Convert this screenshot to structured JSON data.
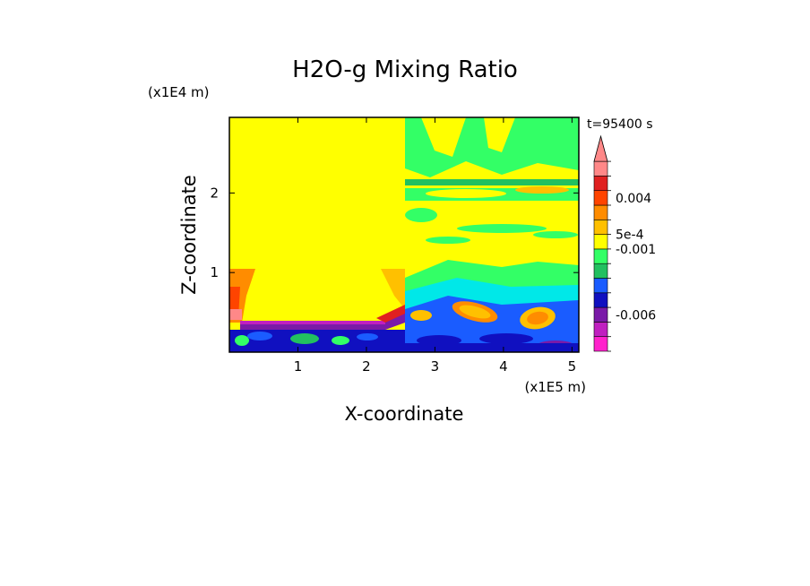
{
  "chart_data": {
    "type": "heatmap",
    "title": "H2O-g Mixing Ratio",
    "xlabel": "X-coordinate",
    "ylabel": "Z-coordinate",
    "x_unit": "(x1E5 m)",
    "y_unit": "(x1E4 m)",
    "time_label": "t=95400 s",
    "xlim": [
      0,
      5.1
    ],
    "ylim": [
      0,
      2.95
    ],
    "x_ticks": [
      1,
      2,
      3,
      4,
      5
    ],
    "y_ticks": [
      1,
      2
    ],
    "colorbar": {
      "colors": [
        "#ff22cc",
        "#c020c0",
        "#7a1aa8",
        "#1010c0",
        "#1a5cff",
        "#22c060",
        "#33ff66",
        "#ffff00",
        "#ffc000",
        "#ff8c00",
        "#ff4400",
        "#e02020",
        "#ff8888"
      ],
      "extend_max": true,
      "tick_labels": [
        {
          "label": "0.004",
          "level": 10.5
        },
        {
          "label": "5e-4",
          "level": 8
        },
        {
          "label": "-0.001",
          "level": 7
        },
        {
          "label": "-0.006",
          "level": 2.5
        }
      ]
    },
    "regions": [
      {
        "name": "upper-mixed-layer",
        "color": "#ffff00",
        "x": [
          0,
          5.1
        ],
        "z": [
          0.4,
          2.95
        ]
      },
      {
        "name": "right-upper-band",
        "color": "#33ff66",
        "x": [
          2.6,
          5.1
        ],
        "z": [
          2.0,
          2.95
        ]
      },
      {
        "name": "left-warm-column",
        "color": "#ff8c00",
        "x": [
          0,
          0.22
        ],
        "z": [
          0.4,
          1.05
        ]
      },
      {
        "name": "inversion-layer",
        "color": "#7a1aa8",
        "x": [
          0.2,
          2.35
        ],
        "z": [
          0.28,
          0.42
        ]
      },
      {
        "name": "surface-layer",
        "color": "#1010c0",
        "x": [
          0,
          5.1
        ],
        "z": [
          0,
          0.3
        ]
      },
      {
        "name": "right-turbulent-zone",
        "color": "#1a5cff",
        "x": [
          2.6,
          5.1
        ],
        "z": [
          0.1,
          0.65
        ]
      }
    ]
  }
}
